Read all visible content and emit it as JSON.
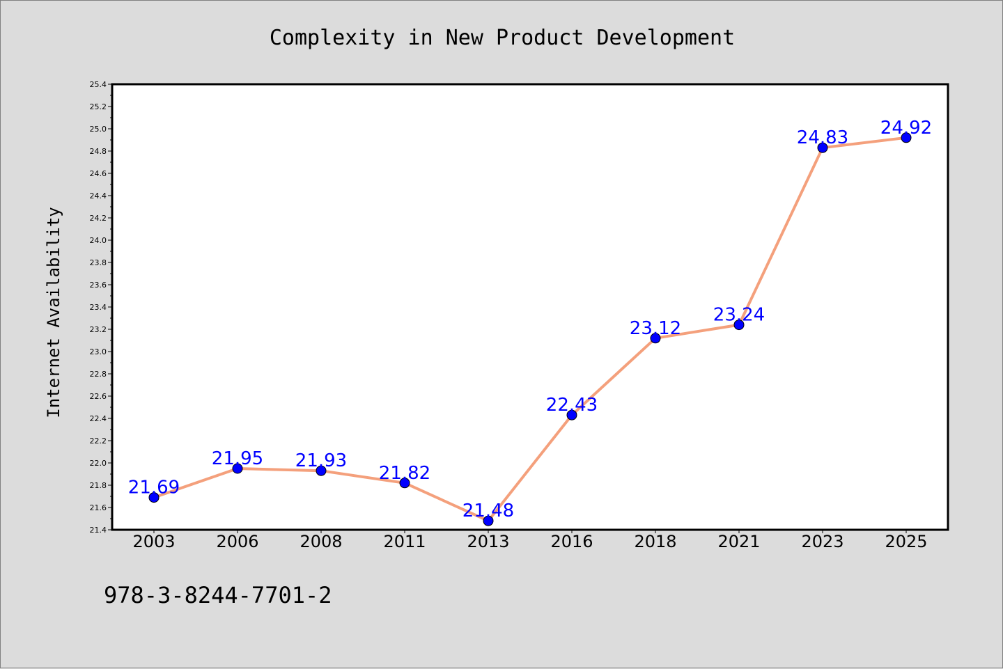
{
  "footer": {
    "code": "978-3-8244-7701-2"
  },
  "colors": {
    "background": "#dcdcdc",
    "plot_background": "#ffffff",
    "line": "#f4a07c",
    "marker": "#0000ff",
    "data_label": "#0000ff"
  },
  "chart_data": {
    "type": "line",
    "title": "Complexity in New Product Development",
    "xlabel": "",
    "ylabel": "Internet Availability",
    "categories": [
      "2003",
      "2006",
      "2008",
      "2011",
      "2013",
      "2016",
      "2018",
      "2021",
      "2023",
      "2025"
    ],
    "values": [
      21.69,
      21.95,
      21.93,
      21.82,
      21.48,
      22.43,
      23.12,
      23.24,
      24.83,
      24.92
    ],
    "data_labels": [
      "21.69",
      "21.95",
      "21.93",
      "21.82",
      "21.48",
      "22.43",
      "23.12",
      "23.24",
      "24.83",
      "24.92"
    ],
    "ylim": [
      21.4,
      25.4
    ],
    "yticks": [
      "21.4",
      "21.6",
      "21.8",
      "22.0",
      "22.2",
      "22.4",
      "22.6",
      "22.8",
      "23.0",
      "23.2",
      "23.4",
      "23.6",
      "23.8",
      "24.0",
      "24.2",
      "24.4",
      "24.6",
      "24.8",
      "25.0",
      "25.2",
      "25.4"
    ],
    "grid": false,
    "legend": "none"
  }
}
